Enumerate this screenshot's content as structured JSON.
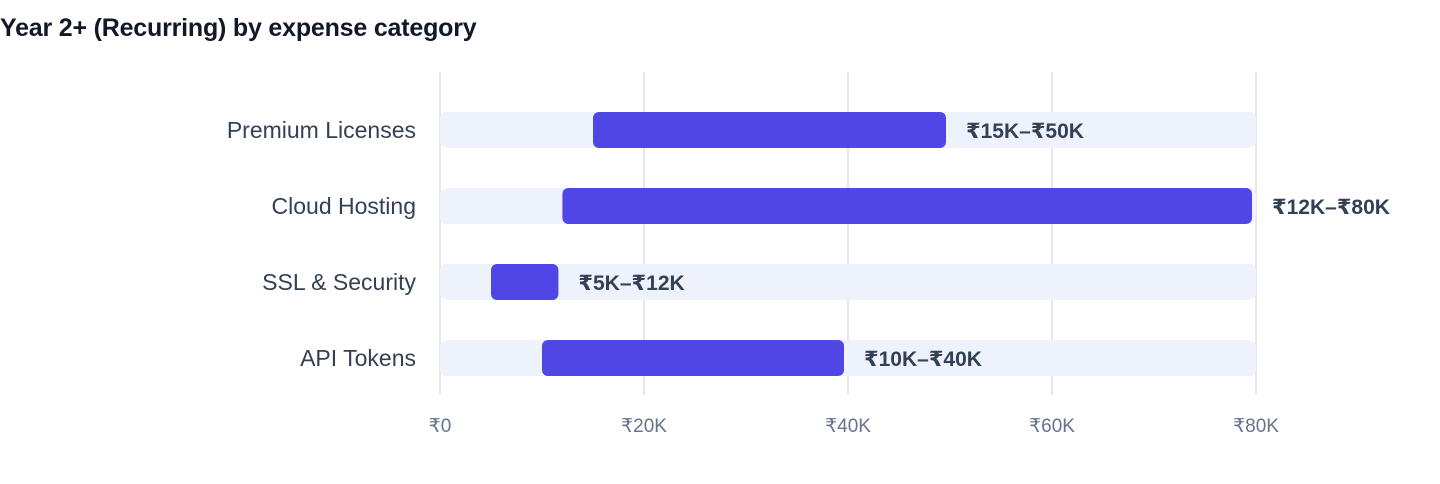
{
  "chart": {
    "title": "Year 2+ (Recurring) by expense category"
  },
  "colors": {
    "track": "#eef2fd",
    "bar": "#4f46e5",
    "grid": "#e5e7eb",
    "label": "#334155",
    "tick": "#64748b"
  },
  "chart_data": {
    "type": "bar",
    "orientation": "horizontal",
    "subtype": "range",
    "title": "Year 2+ (Recurring) by expense category",
    "xlabel": "",
    "ylabel": "",
    "xlim": [
      0,
      80000
    ],
    "grid": true,
    "categories": [
      "Premium Licenses",
      "Cloud Hosting",
      "SSL & Security",
      "API Tokens"
    ],
    "series": [
      {
        "ranges": [
          [
            15000,
            50000
          ],
          [
            12000,
            80000
          ],
          [
            5000,
            12000
          ],
          [
            10000,
            40000
          ]
        ],
        "data_labels": [
          "₹15K–₹50K",
          "₹12K–₹80K",
          "₹5K–₹12K",
          "₹10K–₹40K"
        ]
      }
    ],
    "x_ticks": [
      0,
      20000,
      40000,
      60000,
      80000
    ],
    "x_tick_labels": [
      "₹0",
      "₹20K",
      "₹40K",
      "₹60K",
      "₹80K"
    ]
  }
}
